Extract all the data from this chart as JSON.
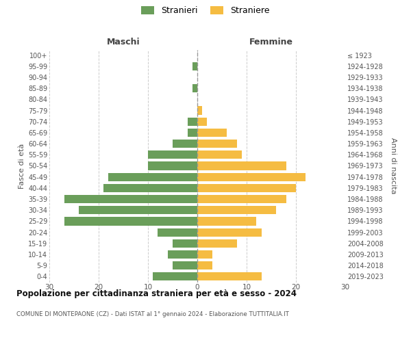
{
  "age_groups": [
    "0-4",
    "5-9",
    "10-14",
    "15-19",
    "20-24",
    "25-29",
    "30-34",
    "35-39",
    "40-44",
    "45-49",
    "50-54",
    "55-59",
    "60-64",
    "65-69",
    "70-74",
    "75-79",
    "80-84",
    "85-89",
    "90-94",
    "95-99",
    "100+"
  ],
  "birth_years": [
    "2019-2023",
    "2014-2018",
    "2009-2013",
    "2004-2008",
    "1999-2003",
    "1994-1998",
    "1989-1993",
    "1984-1988",
    "1979-1983",
    "1974-1978",
    "1969-1973",
    "1964-1968",
    "1959-1963",
    "1954-1958",
    "1949-1953",
    "1944-1948",
    "1939-1943",
    "1934-1938",
    "1929-1933",
    "1924-1928",
    "≤ 1923"
  ],
  "males": [
    9,
    5,
    6,
    5,
    8,
    27,
    24,
    27,
    19,
    18,
    10,
    10,
    5,
    2,
    2,
    0,
    0,
    1,
    0,
    1,
    0
  ],
  "females": [
    13,
    3,
    3,
    8,
    13,
    12,
    16,
    18,
    20,
    22,
    18,
    9,
    8,
    6,
    2,
    1,
    0,
    0,
    0,
    0,
    0
  ],
  "male_color": "#6a9e5a",
  "female_color": "#f5bc42",
  "bg_color": "#ffffff",
  "grid_color": "#cccccc",
  "title": "Popolazione per cittadinanza straniera per età e sesso - 2024",
  "subtitle": "COMUNE DI MONTEPAONE (CZ) - Dati ISTAT al 1° gennaio 2024 - Elaborazione TUTTITALIA.IT",
  "xlabel_left": "Maschi",
  "xlabel_right": "Femmine",
  "ylabel_left": "Fasce di età",
  "ylabel_right": "Anni di nascita",
  "legend_male": "Stranieri",
  "legend_female": "Straniere",
  "xlim": 30,
  "bar_height": 0.75
}
